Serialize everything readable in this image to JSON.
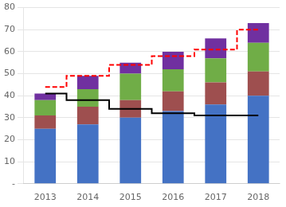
{
  "chart_data": {
    "type": "bar",
    "stacked": true,
    "grid": true,
    "categories": [
      "2013",
      "2014",
      "2015",
      "2016",
      "2017",
      "2018"
    ],
    "series": [
      {
        "color": "#4472C4",
        "values": [
          25,
          27,
          30,
          33,
          36,
          40
        ]
      },
      {
        "color": "#9E4F4F",
        "values": [
          6,
          8,
          8,
          9,
          10,
          11
        ]
      },
      {
        "color": "#70AD47",
        "values": [
          7,
          8,
          12,
          10,
          11,
          13
        ]
      },
      {
        "color": "#7030A0",
        "values": [
          3,
          6,
          5,
          8,
          9,
          9
        ]
      },
      {
        "type": "line",
        "line_style": "solid",
        "color": "#000000",
        "values": [
          41,
          38,
          34,
          32,
          31,
          31
        ]
      },
      {
        "type": "line",
        "line_style": "dashed",
        "color": "#FF0000",
        "values": [
          44,
          49,
          54,
          58,
          61,
          70
        ]
      }
    ],
    "ylim": [
      0,
      80
    ],
    "yticks": [
      {
        "value": 0,
        "label": "-"
      },
      10,
      20,
      30,
      40,
      50,
      60,
      70,
      80
    ]
  }
}
